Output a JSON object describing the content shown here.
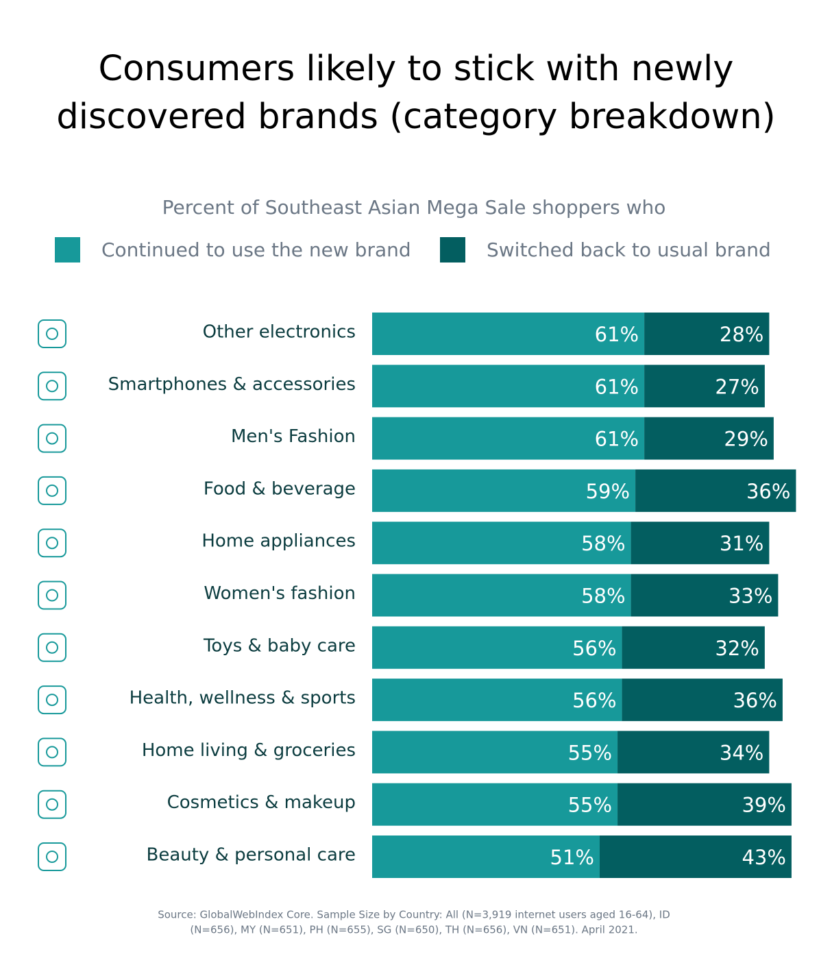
{
  "chart_data": {
    "type": "bar",
    "orientation": "horizontal",
    "stacked": true,
    "title": "Consumers likely to stick with newly discovered brands (category breakdown)",
    "subtitle": "Percent of Southeast Asian Mega Sale shoppers who",
    "categories": [
      "Other electronics",
      "Smartphones & accessories",
      "Men's Fashion",
      "Food & beverage",
      "Home appliances",
      "Women's fashion",
      "Toys & baby care",
      "Health, wellness & sports",
      "Home living & groceries",
      "Cosmetics & makeup",
      "Beauty & personal care"
    ],
    "series": [
      {
        "name": "Continued to use the new brand",
        "color": "#17999a",
        "values": [
          61,
          61,
          61,
          59,
          58,
          58,
          56,
          56,
          55,
          55,
          51
        ],
        "value_labels": [
          "61%",
          "61%",
          "61%",
          "59%",
          "58%",
          "58%",
          "56%",
          "56%",
          "55%",
          "55%",
          "51%"
        ]
      },
      {
        "name": "Switched back to usual brand",
        "color": "#035e60",
        "values": [
          28,
          27,
          29,
          36,
          31,
          33,
          32,
          36,
          34,
          39,
          43
        ],
        "value_labels": [
          "28%",
          "27%",
          "29%",
          "36%",
          "31%",
          "33%",
          "32%",
          "36%",
          "34%",
          "39%",
          "43%"
        ]
      }
    ],
    "source": [
      "Source: GlobalWebIndex Core. Sample Size by Country: All (N=3,919 internet users aged 16-64), ID",
      "(N=656), MY (N=651), PH (N=655), SG (N=650), TH (N=656), VN (N=651). April 2021."
    ]
  }
}
